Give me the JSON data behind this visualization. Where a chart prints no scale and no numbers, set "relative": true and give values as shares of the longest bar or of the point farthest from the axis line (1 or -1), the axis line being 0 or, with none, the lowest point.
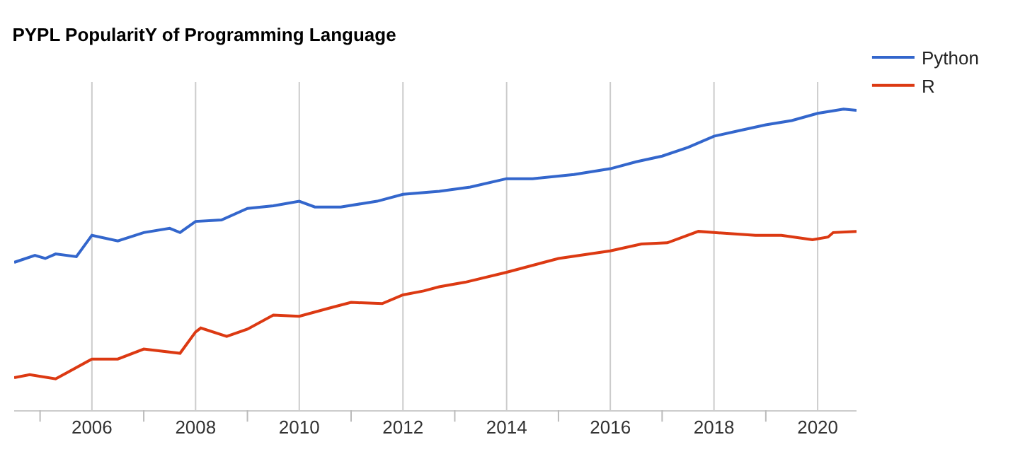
{
  "chart_data": {
    "type": "line",
    "title": "PYPL PopularitY of Programming Language",
    "relative": true,
    "xlim": [
      2004.5,
      2020.75
    ],
    "xticks": [
      {
        "value": 2005,
        "label": null
      },
      2006,
      {
        "value": 2007,
        "label": null
      },
      2008,
      {
        "value": 2009,
        "label": null
      },
      2010,
      {
        "value": 2011,
        "label": null
      },
      2012,
      {
        "value": 2013,
        "label": null
      },
      2014,
      {
        "value": 2015,
        "label": null
      },
      2016,
      {
        "value": 2017,
        "label": null
      },
      2018,
      {
        "value": 2019,
        "label": null
      },
      2020
    ],
    "grid": "x",
    "legend": "top right",
    "marker": "none",
    "line_style": "solid",
    "series": [
      {
        "name": "Python",
        "color": "#3366cc",
        "x": [
          2004.5,
          2004.9,
          2005.1,
          2005.3,
          2005.7,
          2006,
          2006.5,
          2007,
          2007.5,
          2007.7,
          2008,
          2008.5,
          2009,
          2009.5,
          2010,
          2010.3,
          2010.8,
          2011.5,
          2012,
          2012.7,
          2013.3,
          2014,
          2014.5,
          2015.3,
          2016,
          2016.5,
          2017,
          2017.5,
          2018,
          2018.5,
          2019,
          2019.5,
          2020,
          2020.5,
          2020.75
        ],
        "values": [
          0.491,
          0.514,
          0.504,
          0.519,
          0.51,
          0.581,
          0.562,
          0.59,
          0.604,
          0.59,
          0.627,
          0.632,
          0.67,
          0.679,
          0.694,
          0.675,
          0.675,
          0.694,
          0.717,
          0.727,
          0.741,
          0.769,
          0.769,
          0.783,
          0.802,
          0.825,
          0.844,
          0.873,
          0.91,
          0.929,
          0.948,
          0.962,
          0.986,
          1,
          0.996
        ]
      },
      {
        "name": "R",
        "color": "#dc3912",
        "x": [
          2004.5,
          2004.8,
          2005.3,
          2005.5,
          2006,
          2006.5,
          2007,
          2007.7,
          2008,
          2008.1,
          2008.6,
          2009,
          2009.5,
          2010,
          2010.6,
          2011,
          2011.6,
          2012,
          2012.4,
          2012.7,
          2013.2,
          2014,
          2015,
          2016,
          2016.6,
          2017.1,
          2017.7,
          2018,
          2018.8,
          2019.3,
          2019.9,
          2020.2,
          2020.3,
          2020.75
        ],
        "values": [
          0.108,
          0.118,
          0.104,
          0.123,
          0.17,
          0.17,
          0.203,
          0.189,
          0.26,
          0.273,
          0.245,
          0.269,
          0.316,
          0.312,
          0.34,
          0.358,
          0.354,
          0.383,
          0.396,
          0.41,
          0.425,
          0.458,
          0.504,
          0.529,
          0.552,
          0.556,
          0.594,
          0.59,
          0.581,
          0.581,
          0.566,
          0.575,
          0.59,
          0.594
        ]
      }
    ]
  }
}
